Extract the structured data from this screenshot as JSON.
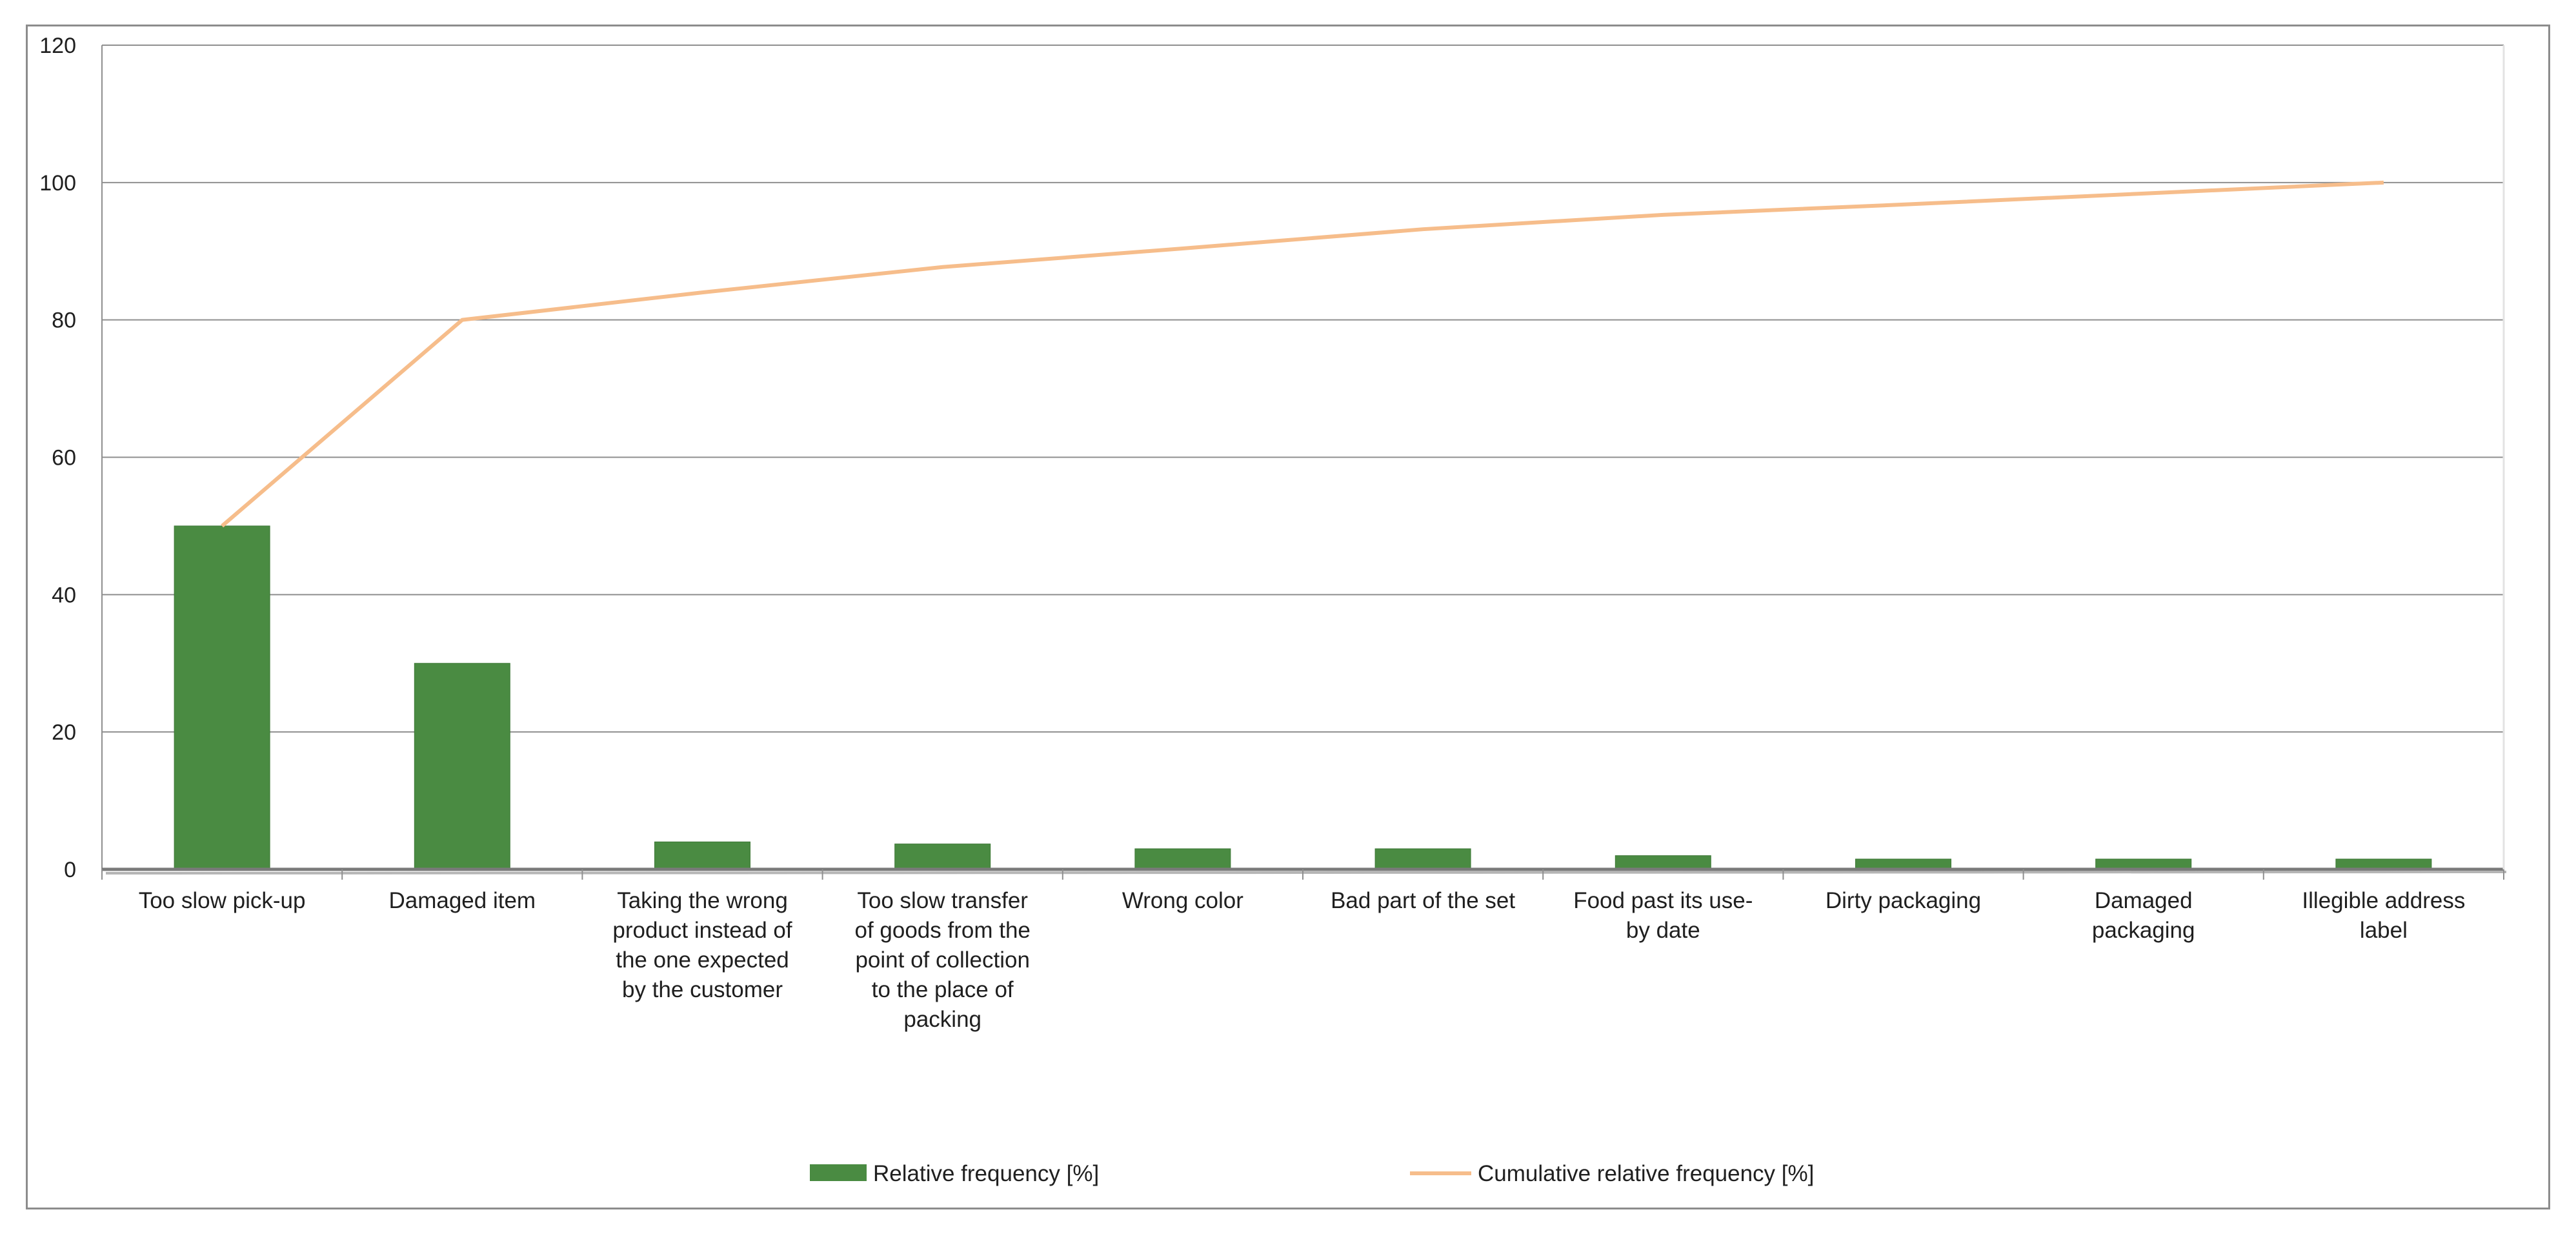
{
  "chart_data": {
    "type": "bar",
    "categories": [
      "Too slow pick-up",
      "Damaged item",
      "Taking the wrong product instead of the one expected by the customer",
      "Too slow transfer of goods from the point of collection to the place of packing",
      "Wrong color",
      "Bad part of the set",
      "Food past its use-by date",
      "Dirty packaging",
      "Damaged packaging",
      "Illegible address label"
    ],
    "category_lines": [
      [
        "Too slow pick-up"
      ],
      [
        "Damaged item"
      ],
      [
        "Taking the wrong",
        "product instead of",
        "the one expected",
        "by the customer"
      ],
      [
        "Too slow transfer",
        "of goods from the",
        "point of collection",
        "to the place of",
        "packing"
      ],
      [
        "Wrong color"
      ],
      [
        "Bad part of the set"
      ],
      [
        "Food past its use-",
        "by date"
      ],
      [
        "Dirty packaging"
      ],
      [
        "Damaged",
        "packaging"
      ],
      [
        "Illegible address",
        "label"
      ]
    ],
    "series": [
      {
        "name": "Relative frequency [%]",
        "type": "bar",
        "color": "#4a8b42",
        "values": [
          50,
          30,
          4,
          3.7,
          3,
          3,
          2,
          1.5,
          1.5,
          1.5
        ]
      },
      {
        "name": "Cumulative relative frequency [%]",
        "type": "line",
        "color": "#f6bd8b",
        "values": [
          50,
          80,
          84,
          87.7,
          90.4,
          93.2,
          95.3,
          96.8,
          98.4,
          100
        ]
      }
    ],
    "y_ticks": [
      0,
      20,
      40,
      60,
      80,
      100,
      120
    ],
    "ylim": [
      0,
      120
    ],
    "grid": true,
    "legend_position": "bottom",
    "title": "",
    "xlabel": "",
    "ylabel": ""
  }
}
